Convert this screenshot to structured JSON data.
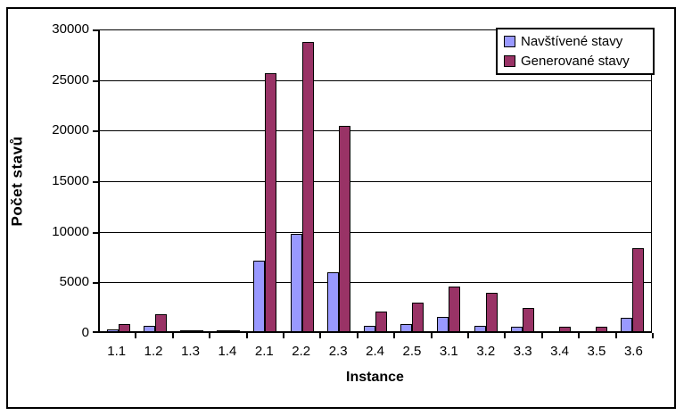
{
  "chart_data": {
    "type": "bar",
    "title": "",
    "xlabel": "Instance",
    "ylabel": "Počet stavů",
    "categories": [
      "1.1",
      "1.2",
      "1.3",
      "1.4",
      "2.1",
      "2.2",
      "2.3",
      "2.4",
      "2.5",
      "3.1",
      "3.2",
      "3.3",
      "3.4",
      "3.5",
      "3.6"
    ],
    "series": [
      {
        "name": "Navštívené stavy",
        "color": "#9999FF",
        "values": [
          150,
          550,
          50,
          50,
          7000,
          9600,
          5800,
          500,
          700,
          1400,
          500,
          400,
          30,
          30,
          1300
        ]
      },
      {
        "name": "Generované stavy",
        "color": "#993366",
        "values": [
          700,
          1700,
          100,
          100,
          25500,
          28600,
          20300,
          1900,
          2800,
          4400,
          3800,
          2300,
          450,
          400,
          8200
        ]
      }
    ],
    "ylim": [
      0,
      30000
    ],
    "ytick_interval": 5000,
    "yticks": [
      "30000",
      "25000",
      "20000",
      "15000",
      "10000",
      "5000",
      "0"
    ],
    "grid": true,
    "legend_position": "top-right",
    "colors": {
      "axis": "#000000",
      "gridline": "#000000",
      "plot_background": "#FFFFFF",
      "chart_border": "#000000"
    }
  }
}
